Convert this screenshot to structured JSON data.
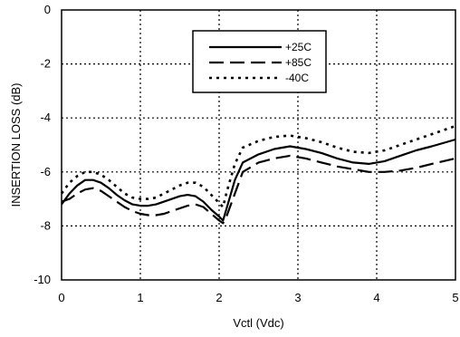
{
  "chart_data": {
    "type": "line",
    "title": "",
    "xlabel": "Vctl (Vdc)",
    "ylabel": "INSERTION LOSS (dB)",
    "xlim": [
      0,
      5
    ],
    "ylim": [
      -10,
      0
    ],
    "x_ticks": [
      "0",
      "1",
      "2",
      "3",
      "4",
      "5"
    ],
    "y_ticks": [
      "0",
      "-2",
      "-4",
      "-6",
      "-8",
      "-10"
    ],
    "grid": true,
    "legend_position": "top-center",
    "series": [
      {
        "name": "+25C",
        "style": "solid",
        "x": [
          0,
          0.1,
          0.2,
          0.3,
          0.4,
          0.5,
          0.6,
          0.7,
          0.8,
          0.9,
          1.0,
          1.1,
          1.2,
          1.3,
          1.4,
          1.5,
          1.6,
          1.7,
          1.8,
          1.9,
          2.0,
          2.05,
          2.1,
          2.2,
          2.3,
          2.5,
          2.7,
          2.9,
          3.1,
          3.3,
          3.5,
          3.7,
          3.9,
          4.1,
          4.3,
          4.5,
          4.7,
          5.0
        ],
        "y": [
          -7.2,
          -6.8,
          -6.5,
          -6.3,
          -6.3,
          -6.4,
          -6.6,
          -6.85,
          -7.05,
          -7.2,
          -7.25,
          -7.25,
          -7.2,
          -7.1,
          -7.0,
          -6.9,
          -6.85,
          -6.9,
          -7.1,
          -7.4,
          -7.65,
          -7.8,
          -7.3,
          -6.3,
          -5.65,
          -5.35,
          -5.15,
          -5.05,
          -5.15,
          -5.3,
          -5.5,
          -5.65,
          -5.7,
          -5.6,
          -5.4,
          -5.2,
          -5.05,
          -4.8
        ]
      },
      {
        "name": "+85C",
        "style": "dashed",
        "x": [
          0,
          0.1,
          0.2,
          0.3,
          0.4,
          0.5,
          0.6,
          0.7,
          0.8,
          0.9,
          1.0,
          1.1,
          1.2,
          1.3,
          1.4,
          1.5,
          1.6,
          1.7,
          1.8,
          1.9,
          2.0,
          2.05,
          2.1,
          2.2,
          2.3,
          2.5,
          2.7,
          2.9,
          3.1,
          3.3,
          3.5,
          3.7,
          3.9,
          4.1,
          4.3,
          4.5,
          4.7,
          5.0
        ],
        "y": [
          -7.1,
          -7.0,
          -6.8,
          -6.65,
          -6.6,
          -6.7,
          -6.9,
          -7.1,
          -7.3,
          -7.45,
          -7.55,
          -7.6,
          -7.6,
          -7.55,
          -7.45,
          -7.35,
          -7.25,
          -7.2,
          -7.3,
          -7.55,
          -7.8,
          -7.9,
          -7.6,
          -6.8,
          -6.0,
          -5.65,
          -5.5,
          -5.4,
          -5.5,
          -5.65,
          -5.8,
          -5.9,
          -6.0,
          -6.0,
          -5.95,
          -5.85,
          -5.7,
          -5.5
        ]
      },
      {
        "name": "-40C",
        "style": "dotted",
        "x": [
          0,
          0.1,
          0.2,
          0.3,
          0.4,
          0.5,
          0.6,
          0.7,
          0.8,
          0.9,
          1.0,
          1.1,
          1.2,
          1.3,
          1.4,
          1.5,
          1.6,
          1.7,
          1.8,
          1.9,
          2.0,
          2.05,
          2.1,
          2.2,
          2.3,
          2.5,
          2.7,
          2.9,
          3.1,
          3.3,
          3.5,
          3.7,
          3.9,
          4.1,
          4.3,
          4.5,
          4.7,
          5.0
        ],
        "y": [
          -6.8,
          -6.4,
          -6.15,
          -6.0,
          -6.0,
          -6.1,
          -6.3,
          -6.55,
          -6.8,
          -6.95,
          -7.0,
          -7.0,
          -6.95,
          -6.8,
          -6.65,
          -6.5,
          -6.4,
          -6.4,
          -6.55,
          -6.85,
          -7.15,
          -7.3,
          -6.7,
          -5.7,
          -5.1,
          -4.85,
          -4.7,
          -4.65,
          -4.75,
          -4.9,
          -5.1,
          -5.25,
          -5.3,
          -5.2,
          -5.0,
          -4.8,
          -4.6,
          -4.3
        ]
      }
    ]
  }
}
